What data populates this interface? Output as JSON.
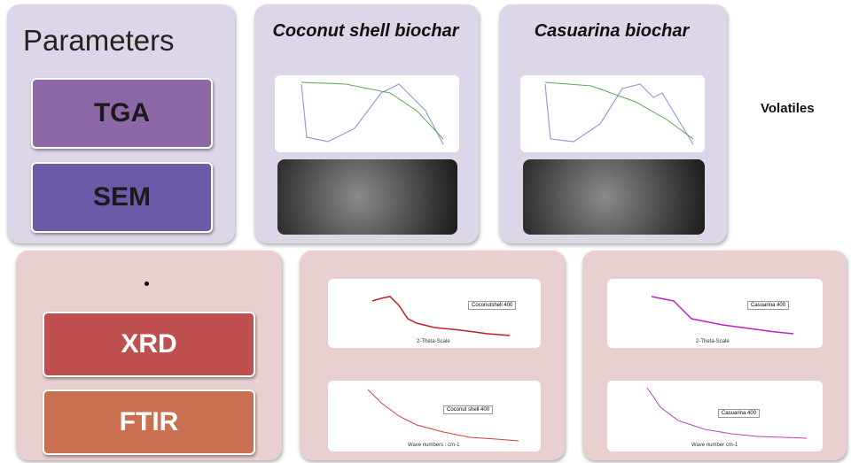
{
  "parameters": {
    "title": "Parameters",
    "items": [
      "TGA",
      "SEM"
    ]
  },
  "samples": [
    {
      "label": "Coconut shell biochar"
    },
    {
      "label": "Casuarina biochar"
    }
  ],
  "volatiles": "Volatiles",
  "methods": [
    "XRD",
    "FTIR"
  ],
  "xrd_plots": [
    {
      "legend": "Coconutshell 400",
      "x_label": "2-Theta-Scale"
    },
    {
      "legend": "Casuarina 400",
      "x_label": "2-Theta-Scale"
    }
  ],
  "ftir_plots": [
    {
      "legend": "Coconut shell 400",
      "x_label": "Wave numbers : cm-1"
    },
    {
      "legend": "Casuarina 400",
      "x_label": "Wave number cm-1"
    }
  ]
}
